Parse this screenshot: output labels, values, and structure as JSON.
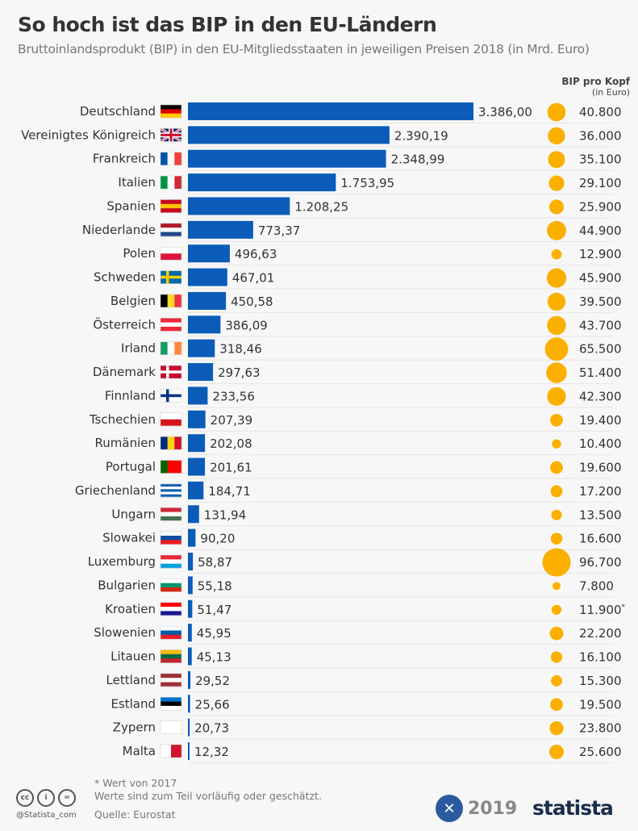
{
  "header": {
    "title": "So hoch ist das BIP in den EU-Ländern",
    "subtitle": "Bruttoinlandsprodukt (BIP) in den EU-Mitgliedsstaaten in jeweiligen Preisen 2018 (in Mrd. Euro)"
  },
  "ppc_header": {
    "title": "BIP pro Kopf",
    "unit": "(in Euro)"
  },
  "chart_data": {
    "type": "bar",
    "orientation": "horizontal",
    "title": "So hoch ist das BIP in den EU-Ländern",
    "grid": false,
    "bar_color": "#0a5cb8",
    "bubble_color": "#fbb000",
    "categories": [
      "Deutschland",
      "Vereinigtes Königreich",
      "Frankreich",
      "Italien",
      "Spanien",
      "Niederlande",
      "Polen",
      "Schweden",
      "Belgien",
      "Österreich",
      "Irland",
      "Dänemark",
      "Finnland",
      "Tschechien",
      "Rumänien",
      "Portugal",
      "Griechenland",
      "Ungarn",
      "Slowakei",
      "Luxemburg",
      "Bulgarien",
      "Kroatien",
      "Slowenien",
      "Litauen",
      "Lettland",
      "Estland",
      "Zypern",
      "Malta"
    ],
    "series": [
      {
        "name": "BIP (in Mrd. Euro)",
        "values": [
          3386.0,
          2390.19,
          2348.99,
          1753.95,
          1208.25,
          773.37,
          496.63,
          467.01,
          450.58,
          386.09,
          318.46,
          297.63,
          233.56,
          207.39,
          202.08,
          201.61,
          184.71,
          131.94,
          90.2,
          58.87,
          55.18,
          51.47,
          45.95,
          45.13,
          29.52,
          25.66,
          20.73,
          12.32
        ],
        "labels": [
          "3.386,00",
          "2.390,19",
          "2.348,99",
          "1.753,95",
          "1.208,25",
          "773,37",
          "496,63",
          "467,01",
          "450,58",
          "386,09",
          "318,46",
          "297,63",
          "233,56",
          "207,39",
          "202,08",
          "201,61",
          "184,71",
          "131,94",
          "90,20",
          "58,87",
          "55,18",
          "51,47",
          "45,95",
          "45,13",
          "29,52",
          "25,66",
          "20,73",
          "12,32"
        ]
      },
      {
        "name": "BIP pro Kopf (in Euro)",
        "values": [
          40800,
          36000,
          35100,
          29100,
          25900,
          44900,
          12900,
          45900,
          39500,
          43700,
          65500,
          51400,
          42300,
          19400,
          10400,
          19600,
          17200,
          13500,
          16600,
          96700,
          7800,
          11900,
          22200,
          16100,
          15300,
          19500,
          23800,
          25600
        ],
        "labels": [
          "40.800",
          "36.000",
          "35.100",
          "29.100",
          "25.900",
          "44.900",
          "12.900",
          "45.900",
          "39.500",
          "43.700",
          "65.500",
          "51.400",
          "42.300",
          "19.400",
          "10.400",
          "19.600",
          "17.200",
          "13.500",
          "16.600",
          "96.700",
          "7.800",
          "11.900*",
          "22.200",
          "16.100",
          "15.300",
          "19.500",
          "23.800",
          "25.600"
        ]
      }
    ],
    "flags": [
      [
        "h",
        "#000",
        "#d00",
        "#fc0"
      ],
      [
        "uk"
      ],
      [
        "v",
        "#0055a4",
        "#fff",
        "#ef4135"
      ],
      [
        "v",
        "#009246",
        "#fff",
        "#ce2b37"
      ],
      [
        "h",
        "#c60b1e",
        "#ffc400",
        "#c60b1e"
      ],
      [
        "h",
        "#ae1c28",
        "#fff",
        "#21468b"
      ],
      [
        "h",
        "#fff",
        "#dc143c"
      ],
      [
        "x",
        "#006aa7",
        "#fecc00"
      ],
      [
        "v",
        "#000",
        "#fdda24",
        "#ef3340"
      ],
      [
        "h",
        "#ed2939",
        "#fff",
        "#ed2939"
      ],
      [
        "v",
        "#169b62",
        "#fff",
        "#ff883e"
      ],
      [
        "x",
        "#c60c30",
        "#fff"
      ],
      [
        "x",
        "#fff",
        "#003580"
      ],
      [
        "h",
        "#fff",
        "#d7141a"
      ],
      [
        "v",
        "#002b7f",
        "#fcd116",
        "#ce1126"
      ],
      [
        "v",
        "#006600",
        "#ff0000",
        "#ff0000"
      ],
      [
        "h",
        "#0d5eaf",
        "#fff",
        "#0d5eaf",
        "#fff",
        "#0d5eaf"
      ],
      [
        "h",
        "#ce2939",
        "#fff",
        "#477050"
      ],
      [
        "h",
        "#fff",
        "#0b4ea2",
        "#ee1c25"
      ],
      [
        "h",
        "#ed2939",
        "#fff",
        "#00a1de"
      ],
      [
        "h",
        "#fff",
        "#00966e",
        "#d62612"
      ],
      [
        "h",
        "#f00",
        "#fff",
        "#171796"
      ],
      [
        "h",
        "#fff",
        "#005da4",
        "#ed1c24"
      ],
      [
        "h",
        "#fdb913",
        "#006a44",
        "#c1272d"
      ],
      [
        "h",
        "#9e3039",
        "#fff",
        "#9e3039"
      ],
      [
        "h",
        "#0072ce",
        "#000",
        "#fff"
      ],
      [
        "h",
        "#fff",
        "#fff"
      ],
      [
        "v",
        "#fff",
        "#cf142b"
      ]
    ]
  },
  "footer": {
    "note": "* Wert von 2017",
    "note2": "Werte sind zum Teil vorläufig oder geschätzt.",
    "source": "Quelle: Eurostat",
    "handle": "@Statista_com",
    "year": "2019",
    "brand": "statista"
  }
}
